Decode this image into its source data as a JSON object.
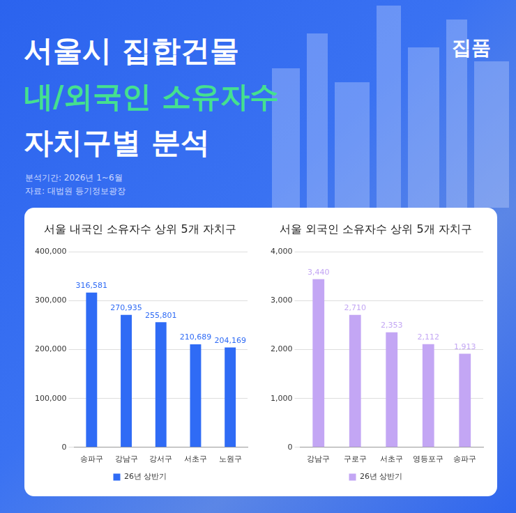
{
  "header": {
    "title_lines": [
      "서울시 집합건물",
      "내/외국인 소유자수",
      "자치구별 분석"
    ],
    "brand": "집품",
    "notes": [
      "분석기간: 2026년 1~6월",
      "자료: 대법원 등기정보광장"
    ]
  },
  "chart_data": [
    {
      "type": "bar",
      "title": "서울 내국인 소유자수 상위 5개 자치구",
      "categories": [
        "송파구",
        "강남구",
        "강서구",
        "서초구",
        "노원구"
      ],
      "series": [
        {
          "name": "26년 상반기",
          "color": "#2f6bf5",
          "values": [
            316581,
            270935,
            255801,
            210689,
            204169
          ],
          "value_labels": [
            "316,581",
            "270,935",
            "255,801",
            "210,689",
            "204,169"
          ]
        }
      ],
      "ylim": [
        0,
        400000
      ],
      "yticks": [
        0,
        {
          "value": 100000,
          "label": "100,000"
        },
        {
          "value": 200000,
          "label": "200,000"
        },
        {
          "value": 300000,
          "label": "300,000"
        },
        {
          "value": 400000,
          "label": "400,000"
        }
      ],
      "grid": true,
      "legend": "bottom",
      "data_labels": true
    },
    {
      "type": "bar",
      "title": "서울 외국인 소유자수 상위 5개 자치구",
      "categories": [
        "강남구",
        "구로구",
        "서초구",
        "영등포구",
        "송파구"
      ],
      "series": [
        {
          "name": "26년 상반기",
          "color": "#c3a6f4",
          "values": [
            3440,
            2710,
            2353,
            2112,
            1913
          ],
          "value_labels": [
            "3,440",
            "2,710",
            "2,353",
            "2,112",
            "1,913"
          ]
        }
      ],
      "ylim": [
        0,
        4000
      ],
      "yticks": [
        0,
        {
          "value": 1000,
          "label": "1,000"
        },
        {
          "value": 2000,
          "label": "2,000"
        },
        {
          "value": 3000,
          "label": "3,000"
        },
        {
          "value": 4000,
          "label": "4,000"
        }
      ],
      "grid": true,
      "legend": "bottom",
      "data_labels": true
    }
  ]
}
